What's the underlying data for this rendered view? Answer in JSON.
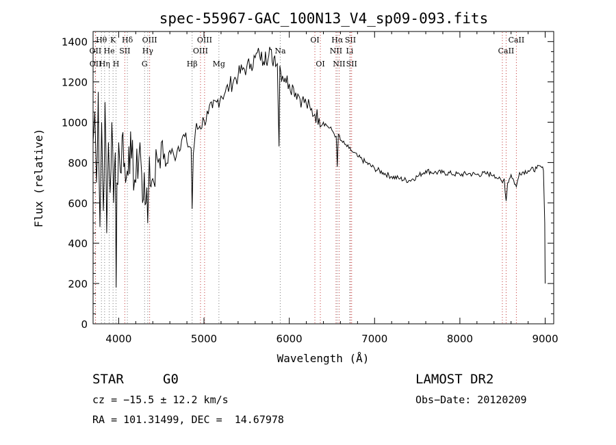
{
  "chart_data": {
    "type": "line",
    "title": "spec-55967-GAC_100N13_V4_sp09-093.fits",
    "xlabel": "Wavelength (Å)",
    "ylabel": "Flux (relative)",
    "xlim": [
      3700,
      9100
    ],
    "ylim": [
      0,
      1450
    ],
    "xticks": [
      4000,
      5000,
      6000,
      7000,
      8000,
      9000
    ],
    "yticks": [
      0,
      200,
      400,
      600,
      800,
      1000,
      1200,
      1400
    ],
    "grid": false,
    "series": [
      {
        "x": [
          3700,
          3720,
          3740,
          3760,
          3780,
          3800,
          3820,
          3840,
          3860,
          3880,
          3900,
          3920,
          3940,
          3960,
          3970,
          3980,
          4000,
          4020,
          4050,
          4080,
          4101,
          4120,
          4150,
          4200,
          4250,
          4280,
          4300,
          4320,
          4340,
          4360,
          4380,
          4400,
          4450,
          4500,
          4550,
          4600,
          4650,
          4700,
          4750,
          4800,
          4850,
          4861,
          4875,
          4900,
          4950,
          5000,
          5050,
          5100,
          5150,
          5200,
          5250,
          5300,
          5350,
          5400,
          5450,
          5500,
          5550,
          5600,
          5650,
          5700,
          5720,
          5750,
          5780,
          5800,
          5830,
          5860,
          5880,
          5890,
          5900,
          5920,
          5950,
          6000,
          6050,
          6100,
          6150,
          6200,
          6250,
          6300,
          6350,
          6400,
          6450,
          6500,
          6550,
          6563,
          6575,
          6600,
          6650,
          6700,
          6750,
          6800,
          6900,
          7000,
          7100,
          7200,
          7300,
          7400,
          7500,
          7600,
          7700,
          7800,
          7900,
          8000,
          8100,
          8200,
          8300,
          8400,
          8450,
          8500,
          8520,
          8542,
          8560,
          8600,
          8662,
          8700,
          8800,
          8900,
          8950,
          8980,
          8995,
          9000
        ],
        "y": [
          900,
          1050,
          700,
          1150,
          480,
          1000,
          560,
          1100,
          450,
          900,
          650,
          1000,
          600,
          850,
          180,
          700,
          900,
          750,
          950,
          700,
          760,
          880,
          820,
          700,
          900,
          600,
          750,
          600,
          500,
          830,
          680,
          720,
          820,
          900,
          780,
          860,
          830,
          880,
          930,
          900,
          870,
          570,
          840,
          960,
          980,
          1010,
          1040,
          1070,
          1100,
          1130,
          1150,
          1180,
          1210,
          1230,
          1260,
          1270,
          1290,
          1320,
          1340,
          1300,
          1350,
          1310,
          1360,
          1300,
          1330,
          1290,
          880,
          1280,
          1250,
          1230,
          1220,
          1190,
          1170,
          1140,
          1110,
          1090,
          1060,
          1040,
          1020,
          1000,
          980,
          960,
          930,
          780,
          940,
          910,
          890,
          870,
          850,
          830,
          800,
          770,
          750,
          730,
          720,
          710,
          730,
          760,
          750,
          750,
          745,
          740,
          745,
          740,
          745,
          740,
          720,
          700,
          720,
          610,
          700,
          740,
          680,
          750,
          760,
          770,
          780,
          760,
          500,
          200
        ]
      }
    ],
    "lines": [
      {
        "name": "Hθ",
        "x": 3798,
        "row": 1,
        "color": "#777777"
      },
      {
        "name": "K",
        "x": 3934,
        "row": 1,
        "color": "#777777"
      },
      {
        "name": "Hδ",
        "x": 4102,
        "row": 1,
        "color": "#777777"
      },
      {
        "name": "OII",
        "x": 3727,
        "row": 2,
        "color": "#c03030"
      },
      {
        "name": "He",
        "x": 3889,
        "row": 2,
        "color": "#777777"
      },
      {
        "name": "SII",
        "x": 4072,
        "row": 2,
        "color": "#c03030"
      },
      {
        "name": "OIII",
        "x": 4363,
        "row": 1,
        "color": "#c03030"
      },
      {
        "name": "Hγ",
        "x": 4341,
        "row": 2,
        "color": "#777777"
      },
      {
        "name": "G",
        "x": 4304,
        "row": 3,
        "color": "#777777"
      },
      {
        "name": "OII",
        "x": 3729,
        "row": 3,
        "color": "#c03030"
      },
      {
        "name": "Hη",
        "x": 3835,
        "row": 3,
        "color": "#777777"
      },
      {
        "name": "H",
        "x": 3969,
        "row": 3,
        "color": "#777777"
      },
      {
        "name": "Hβ",
        "x": 4861,
        "row": 3,
        "color": "#777777"
      },
      {
        "name": "OIII",
        "x": 5007,
        "row": 1,
        "color": "#c03030"
      },
      {
        "name": "OIII",
        "x": 4959,
        "row": 2,
        "color": "#c03030"
      },
      {
        "name": "Mg",
        "x": 5175,
        "row": 3,
        "color": "#777777"
      },
      {
        "name": "Na",
        "x": 5894,
        "row": 2,
        "color": "#777777"
      },
      {
        "name": "OI",
        "x": 6300,
        "row": 1,
        "color": "#c03030"
      },
      {
        "name": "OI",
        "x": 6364,
        "row": 3,
        "color": "#c03030"
      },
      {
        "name": "Hα",
        "x": 6563,
        "row": 1,
        "color": "#777777"
      },
      {
        "name": "SII",
        "x": 6717,
        "row": 1,
        "color": "#c03030"
      },
      {
        "name": "NII",
        "x": 6548,
        "row": 2,
        "color": "#c03030"
      },
      {
        "name": "Li",
        "x": 6708,
        "row": 2,
        "color": "#777777"
      },
      {
        "name": "NII",
        "x": 6584,
        "row": 3,
        "color": "#c03030"
      },
      {
        "name": "SII",
        "x": 6731,
        "row": 3,
        "color": "#c03030"
      },
      {
        "name": "CaII",
        "x": 8662,
        "row": 1,
        "color": "#c03030"
      },
      {
        "name": "CaII",
        "x": 8542,
        "row": 2,
        "color": "#c03030"
      },
      {
        "name": "",
        "x": 8498,
        "row": 0,
        "color": "#c03030"
      }
    ]
  },
  "footer": {
    "class": "STAR",
    "subclass": "G0",
    "survey": "LAMOST DR2",
    "cz": "cz = −15.5 ± 12.2 km/s",
    "obsdate": "Obs−Date: 20120209",
    "radec": "RA = 101.31499, DEC =  14.67978"
  }
}
